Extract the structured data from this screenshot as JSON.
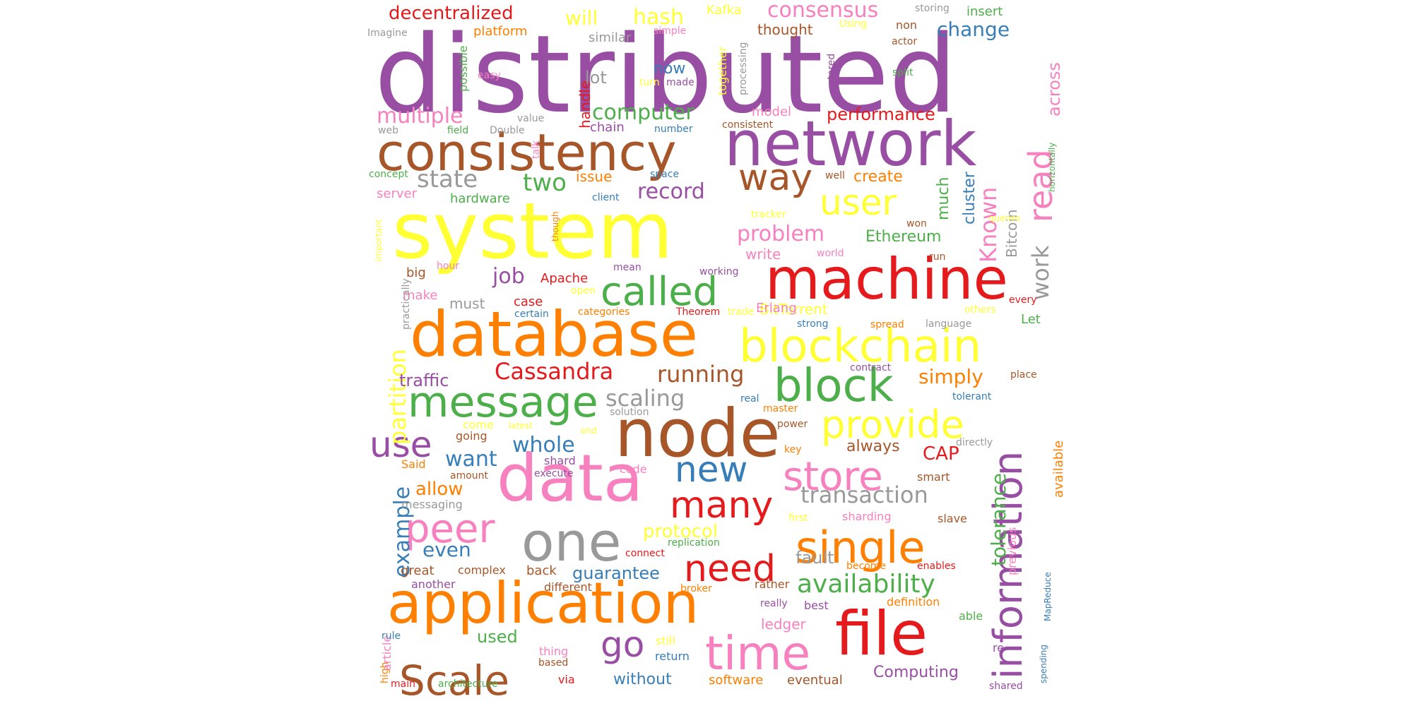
{
  "palette": {
    "purple": "#984EA3",
    "red": "#E41A1C",
    "orange": "#FF7F00",
    "yellow": "#FFFF33",
    "brown": "#A65628",
    "pink": "#F781BF",
    "gray": "#999999",
    "green": "#4DAF4A",
    "blue": "#377EB8"
  },
  "words": [
    {
      "t": "distributed",
      "c": "purple"
    },
    {
      "t": "system",
      "c": "yellow"
    },
    {
      "t": "network",
      "c": "purple"
    },
    {
      "t": "consistency",
      "c": "brown"
    },
    {
      "t": "machine",
      "c": "red"
    },
    {
      "t": "database",
      "c": "orange"
    },
    {
      "t": "data",
      "c": "pink"
    },
    {
      "t": "node",
      "c": "brown"
    },
    {
      "t": "application",
      "c": "orange"
    },
    {
      "t": "file",
      "c": "red"
    },
    {
      "t": "blockchain",
      "c": "yellow"
    },
    {
      "t": "block",
      "c": "green"
    },
    {
      "t": "time",
      "c": "pink"
    },
    {
      "t": "information",
      "c": "purple"
    },
    {
      "t": "single",
      "c": "orange"
    },
    {
      "t": "one",
      "c": "gray"
    },
    {
      "t": "message",
      "c": "green"
    },
    {
      "t": "called",
      "c": "green"
    },
    {
      "t": "Scale",
      "c": "brown"
    },
    {
      "t": "store",
      "c": "pink"
    },
    {
      "t": "provide",
      "c": "yellow"
    },
    {
      "t": "peer",
      "c": "pink"
    },
    {
      "t": "many",
      "c": "red"
    },
    {
      "t": "need",
      "c": "red"
    },
    {
      "t": "user",
      "c": "yellow"
    },
    {
      "t": "read",
      "c": "pink"
    },
    {
      "t": "way",
      "c": "brown"
    },
    {
      "t": "go",
      "c": "purple"
    },
    {
      "t": "new",
      "c": "blue"
    },
    {
      "t": "use",
      "c": "purple"
    },
    {
      "t": "availability",
      "c": "green"
    },
    {
      "t": "transaction",
      "c": "gray"
    },
    {
      "t": "partition",
      "c": "yellow"
    },
    {
      "t": "Cassandra",
      "c": "red"
    },
    {
      "t": "running",
      "c": "brown"
    },
    {
      "t": "scaling",
      "c": "gray"
    },
    {
      "t": "problem",
      "c": "pink"
    },
    {
      "t": "work",
      "c": "gray"
    },
    {
      "t": "Known",
      "c": "pink"
    },
    {
      "t": "tolerance",
      "c": "green"
    },
    {
      "t": "example",
      "c": "blue"
    },
    {
      "t": "state",
      "c": "gray"
    },
    {
      "t": "two",
      "c": "green"
    },
    {
      "t": "job",
      "c": "purple"
    },
    {
      "t": "whole",
      "c": "blue"
    },
    {
      "t": "want",
      "c": "blue"
    },
    {
      "t": "record",
      "c": "purple"
    },
    {
      "t": "multiple",
      "c": "pink"
    },
    {
      "t": "computer",
      "c": "green"
    },
    {
      "t": "consensus",
      "c": "pink"
    },
    {
      "t": "decentralized",
      "c": "red"
    },
    {
      "t": "will",
      "c": "yellow"
    },
    {
      "t": "hash",
      "c": "yellow"
    },
    {
      "t": "simply",
      "c": "orange"
    },
    {
      "t": "even",
      "c": "blue"
    },
    {
      "t": "protocol",
      "c": "yellow"
    },
    {
      "t": "guarantee",
      "c": "blue"
    },
    {
      "t": "allow",
      "c": "orange"
    },
    {
      "t": "without",
      "c": "blue"
    },
    {
      "t": "Computing",
      "c": "purple"
    },
    {
      "t": "CAP",
      "c": "red"
    },
    {
      "t": "change",
      "c": "blue"
    },
    {
      "t": "performance",
      "c": "red"
    },
    {
      "t": "used",
      "c": "green"
    },
    {
      "t": "fault",
      "c": "gray"
    },
    {
      "t": "Ethereum",
      "c": "green"
    },
    {
      "t": "traffic",
      "c": "purple"
    },
    {
      "t": "across",
      "c": "pink"
    },
    {
      "t": "available",
      "c": "orange"
    },
    {
      "t": "always",
      "c": "brown"
    },
    {
      "t": "software",
      "c": "orange"
    },
    {
      "t": "eventual",
      "c": "brown"
    },
    {
      "t": "ledger",
      "c": "pink"
    },
    {
      "t": "create",
      "c": "orange"
    },
    {
      "t": "cluster",
      "c": "blue"
    },
    {
      "t": "much",
      "c": "green"
    },
    {
      "t": "Bitcoin",
      "c": "gray"
    },
    {
      "t": "handle",
      "c": "red"
    },
    {
      "t": "lot",
      "c": "gray"
    },
    {
      "t": "now",
      "c": "blue"
    },
    {
      "t": "BitTorrent",
      "c": "yellow"
    },
    {
      "t": "Erlang",
      "c": "pink"
    },
    {
      "t": "write",
      "c": "pink"
    },
    {
      "t": "must",
      "c": "gray"
    },
    {
      "t": "hardware",
      "c": "green"
    },
    {
      "t": "platform",
      "c": "orange"
    },
    {
      "t": "Kafka",
      "c": "yellow"
    },
    {
      "t": "thought",
      "c": "brown"
    },
    {
      "t": "similar",
      "c": "gray"
    },
    {
      "t": "insert",
      "c": "green"
    },
    {
      "t": "model",
      "c": "pink"
    },
    {
      "t": "server",
      "c": "pink"
    },
    {
      "t": "issue",
      "c": "orange"
    },
    {
      "t": "chain",
      "c": "purple"
    },
    {
      "t": "Let",
      "c": "green"
    },
    {
      "t": "make",
      "c": "pink"
    },
    {
      "t": "Apache",
      "c": "red"
    },
    {
      "t": "case",
      "c": "red"
    },
    {
      "t": "going",
      "c": "brown"
    },
    {
      "t": "Said",
      "c": "orange"
    },
    {
      "t": "come",
      "c": "yellow"
    },
    {
      "t": "shard",
      "c": "purple"
    },
    {
      "t": "code",
      "c": "pink"
    },
    {
      "t": "smart",
      "c": "brown"
    },
    {
      "t": "slave",
      "c": "brown"
    },
    {
      "t": "sharding",
      "c": "pink"
    },
    {
      "t": "previous",
      "c": "pink"
    },
    {
      "t": "definition",
      "c": "orange"
    },
    {
      "t": "able",
      "c": "green"
    },
    {
      "t": "best",
      "c": "purple"
    },
    {
      "t": "rather",
      "c": "brown"
    },
    {
      "t": "back",
      "c": "brown"
    },
    {
      "t": "complex",
      "c": "brown"
    },
    {
      "t": "great",
      "c": "brown"
    },
    {
      "t": "messaging",
      "c": "gray"
    },
    {
      "t": "different",
      "c": "brown"
    },
    {
      "t": "another",
      "c": "purple"
    },
    {
      "t": "thing",
      "c": "pink"
    },
    {
      "t": "via",
      "c": "red"
    },
    {
      "t": "return",
      "c": "blue"
    },
    {
      "t": "still",
      "c": "yellow"
    },
    {
      "t": "architecture",
      "c": "green"
    },
    {
      "t": "main",
      "c": "red"
    },
    {
      "t": "high",
      "c": "orange"
    },
    {
      "t": "article",
      "c": "pink"
    },
    {
      "t": "rule",
      "c": "blue"
    },
    {
      "t": "based",
      "c": "brown"
    },
    {
      "t": "re",
      "c": "purple"
    },
    {
      "t": "shared",
      "c": "purple"
    },
    {
      "t": "spending",
      "c": "blue"
    },
    {
      "t": "MapReduce",
      "c": "blue"
    },
    {
      "t": "replication",
      "c": "green"
    },
    {
      "t": "connect",
      "c": "red"
    },
    {
      "t": "broker",
      "c": "orange"
    },
    {
      "t": "really",
      "c": "purple"
    },
    {
      "t": "become",
      "c": "orange"
    },
    {
      "t": "enables",
      "c": "red"
    },
    {
      "t": "first",
      "c": "yellow"
    },
    {
      "t": "amount",
      "c": "brown"
    },
    {
      "t": "execute",
      "c": "purple"
    },
    {
      "t": "solution",
      "c": "gray"
    },
    {
      "t": "latest",
      "c": "yellow"
    },
    {
      "t": "end",
      "c": "yellow"
    },
    {
      "t": "master",
      "c": "orange"
    },
    {
      "t": "real",
      "c": "blue"
    },
    {
      "t": "power",
      "c": "brown"
    },
    {
      "t": "key",
      "c": "orange"
    },
    {
      "t": "directly",
      "c": "gray"
    },
    {
      "t": "tolerant",
      "c": "blue"
    },
    {
      "t": "contract",
      "c": "purple"
    },
    {
      "t": "place",
      "c": "brown"
    },
    {
      "t": "strong",
      "c": "blue"
    },
    {
      "t": "spread",
      "c": "orange"
    },
    {
      "t": "language",
      "c": "gray"
    },
    {
      "t": "others",
      "c": "yellow"
    },
    {
      "t": "every",
      "c": "red"
    },
    {
      "t": "Theorem",
      "c": "red"
    },
    {
      "t": "trade",
      "c": "yellow"
    },
    {
      "t": "categories",
      "c": "orange"
    },
    {
      "t": "certain",
      "c": "blue"
    },
    {
      "t": "open",
      "c": "yellow"
    },
    {
      "t": "mean",
      "c": "purple"
    },
    {
      "t": "working",
      "c": "purple"
    },
    {
      "t": "world",
      "c": "pink"
    },
    {
      "t": "run",
      "c": "brown"
    },
    {
      "t": "won",
      "c": "brown"
    },
    {
      "t": "tracker",
      "c": "yellow"
    },
    {
      "t": "queries",
      "c": "yellow"
    },
    {
      "t": "horizontally",
      "c": "green"
    },
    {
      "t": "though",
      "c": "orange"
    },
    {
      "t": "client",
      "c": "blue"
    },
    {
      "t": "space",
      "c": "blue"
    },
    {
      "t": "well",
      "c": "brown"
    },
    {
      "t": "number",
      "c": "blue"
    },
    {
      "t": "consistent",
      "c": "brown"
    },
    {
      "t": "talk",
      "c": "pink"
    },
    {
      "t": "value",
      "c": "gray"
    },
    {
      "t": "field",
      "c": "green"
    },
    {
      "t": "Double",
      "c": "gray"
    },
    {
      "t": "web",
      "c": "gray"
    },
    {
      "t": "concept",
      "c": "green"
    },
    {
      "t": "important",
      "c": "yellow"
    },
    {
      "t": "practically",
      "c": "gray"
    },
    {
      "t": "hour",
      "c": "pink"
    },
    {
      "t": "big",
      "c": "brown"
    },
    {
      "t": "possible",
      "c": "green"
    },
    {
      "t": "easy",
      "c": "pink"
    },
    {
      "t": "turn",
      "c": "yellow"
    },
    {
      "t": "made",
      "c": "purple"
    },
    {
      "t": "together",
      "c": "yellow"
    },
    {
      "t": "processing",
      "c": "gray"
    },
    {
      "t": "stored",
      "c": "purple"
    },
    {
      "t": "split",
      "c": "green"
    },
    {
      "t": "simple",
      "c": "pink"
    },
    {
      "t": "Using",
      "c": "yellow"
    },
    {
      "t": "non",
      "c": "brown"
    },
    {
      "t": "actor",
      "c": "brown"
    },
    {
      "t": "storing",
      "c": "gray"
    },
    {
      "t": "Imagine",
      "c": "gray"
    }
  ]
}
